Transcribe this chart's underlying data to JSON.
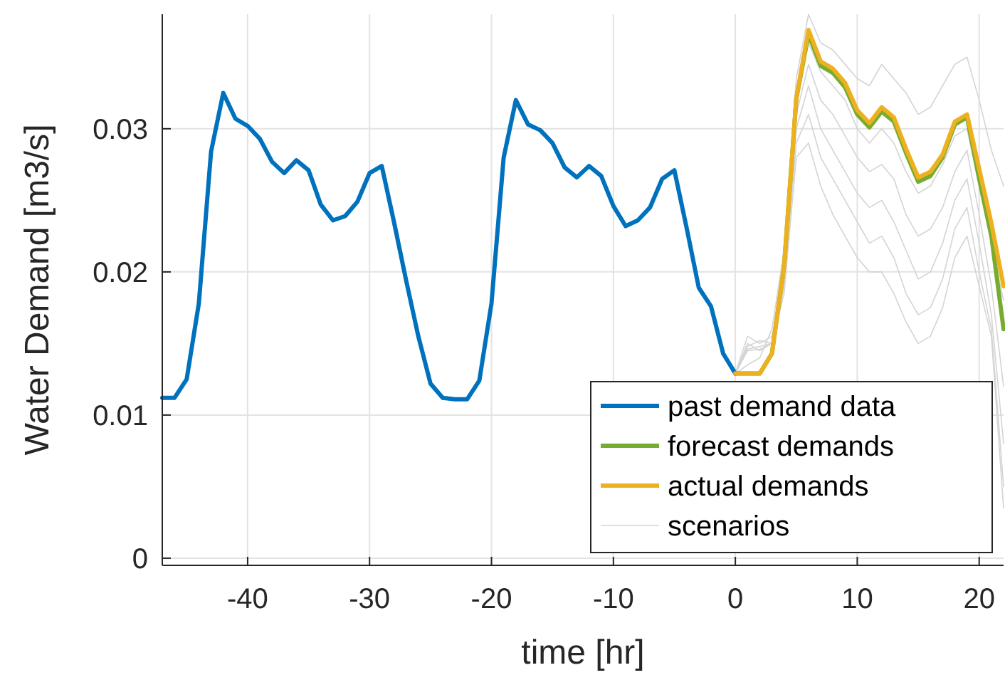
{
  "chart_data": {
    "type": "line",
    "xlabel": "time [hr]",
    "ylabel": "Water Demand [m3/s]",
    "xlim": [
      -47,
      22
    ],
    "xticks": [
      -40,
      -30,
      -20,
      -10,
      0,
      10,
      20
    ],
    "ylim": [
      -0.0005,
      0.038
    ],
    "yticks": [
      0,
      0.01,
      0.02,
      0.03
    ],
    "grid": true,
    "legend": "bottom right",
    "series": [
      {
        "name": "past demand data",
        "color": "#0072bd",
        "x": [
          -47,
          -46,
          -45,
          -44,
          -43,
          -42,
          -41,
          -40,
          -39,
          -38,
          -37,
          -36,
          -35,
          -34,
          -33,
          -32,
          -31,
          -30,
          -29,
          -28,
          -27,
          -26,
          -25,
          -24,
          -23,
          -22,
          -21,
          -20,
          -19,
          -18,
          -17,
          -16,
          -15,
          -14,
          -13,
          -12,
          -11,
          -10,
          -9,
          -8,
          -7,
          -6,
          -5,
          -4,
          -3,
          -2,
          -1,
          0
        ],
        "values": [
          0.0112,
          0.0112,
          0.0125,
          0.0178,
          0.0284,
          0.0325,
          0.0307,
          0.0302,
          0.0293,
          0.0277,
          0.0269,
          0.0278,
          0.0271,
          0.0247,
          0.0236,
          0.0239,
          0.0249,
          0.0269,
          0.0274,
          0.0235,
          0.0194,
          0.0155,
          0.0122,
          0.0112,
          0.0111,
          0.0111,
          0.0124,
          0.0178,
          0.028,
          0.032,
          0.0303,
          0.0299,
          0.029,
          0.0273,
          0.0266,
          0.0274,
          0.0267,
          0.0246,
          0.0232,
          0.0236,
          0.0245,
          0.0265,
          0.0271,
          0.0231,
          0.0189,
          0.0176,
          0.0143,
          0.0129
        ]
      },
      {
        "name": "forecast demands",
        "color": "#77ac30",
        "x": [
          0,
          1,
          2,
          3,
          4,
          5,
          6,
          7,
          8,
          9,
          10,
          11,
          12,
          13,
          14,
          15,
          16,
          17,
          18,
          19,
          20,
          21,
          22
        ],
        "values": [
          0.0129,
          0.0129,
          0.0129,
          0.0143,
          0.0204,
          0.0321,
          0.0366,
          0.0344,
          0.0339,
          0.0329,
          0.031,
          0.0301,
          0.0312,
          0.0305,
          0.0283,
          0.0263,
          0.0267,
          0.028,
          0.0303,
          0.0308,
          0.0265,
          0.0225,
          0.016
        ]
      },
      {
        "name": "actual demands",
        "color": "#edb120",
        "x": [
          0,
          1,
          2,
          3,
          4,
          5,
          6,
          7,
          8,
          9,
          10,
          11,
          12,
          13,
          14,
          15,
          16,
          17,
          18,
          19,
          20,
          21,
          22
        ],
        "values": [
          0.0129,
          0.0129,
          0.0129,
          0.0143,
          0.0204,
          0.0321,
          0.0369,
          0.0347,
          0.0342,
          0.0332,
          0.0313,
          0.0304,
          0.0315,
          0.0308,
          0.0286,
          0.0266,
          0.027,
          0.0282,
          0.0305,
          0.031,
          0.0272,
          0.0234,
          0.019
        ]
      },
      {
        "name": "scenarios",
        "color": "#d4d4d4",
        "x": [
          0,
          1,
          2,
          3,
          4,
          5,
          6,
          7,
          8,
          9,
          10,
          11,
          12,
          13,
          14,
          15,
          16,
          17,
          18,
          19,
          20,
          21,
          22
        ],
        "values": [
          0.0129,
          0.0135,
          0.014,
          0.016,
          0.0215,
          0.0335,
          0.038,
          0.036,
          0.0355,
          0.0345,
          0.0335,
          0.033,
          0.0345,
          0.0335,
          0.0325,
          0.031,
          0.0315,
          0.033,
          0.0345,
          0.035,
          0.032,
          0.0285,
          0.026
        ]
      },
      {
        "color": "#d4d4d4",
        "x": [
          0,
          1,
          2,
          3,
          4,
          5,
          6,
          7,
          8,
          9,
          10,
          11,
          12,
          13,
          14,
          15,
          16,
          17,
          18,
          19,
          20,
          21,
          22
        ],
        "values": [
          0.0129,
          0.0145,
          0.0146,
          0.015,
          0.021,
          0.0325,
          0.036,
          0.034,
          0.033,
          0.032,
          0.03,
          0.029,
          0.03,
          0.029,
          0.027,
          0.0255,
          0.026,
          0.0275,
          0.0295,
          0.03,
          0.026,
          0.022,
          0.018
        ]
      },
      {
        "color": "#d4d4d4",
        "x": [
          0,
          1,
          2,
          3,
          4,
          5,
          6,
          7,
          8,
          9,
          10,
          11,
          12,
          13,
          14,
          15,
          16,
          17,
          18,
          19,
          20,
          21,
          22
        ],
        "values": [
          0.0129,
          0.015,
          0.0145,
          0.015,
          0.02,
          0.031,
          0.0345,
          0.032,
          0.031,
          0.0295,
          0.028,
          0.027,
          0.0275,
          0.0265,
          0.024,
          0.0225,
          0.023,
          0.0245,
          0.027,
          0.0285,
          0.024,
          0.019,
          0.012
        ]
      },
      {
        "color": "#d4d4d4",
        "x": [
          0,
          1,
          2,
          3,
          4,
          5,
          6,
          7,
          8,
          9,
          10,
          11,
          12,
          13,
          14,
          15,
          16,
          17,
          18,
          19,
          20,
          21,
          22
        ],
        "values": [
          0.0129,
          0.0155,
          0.015,
          0.0155,
          0.0195,
          0.03,
          0.033,
          0.03,
          0.0285,
          0.027,
          0.0255,
          0.0245,
          0.025,
          0.0235,
          0.0215,
          0.0195,
          0.02,
          0.022,
          0.025,
          0.0265,
          0.022,
          0.017,
          0.008
        ]
      },
      {
        "color": "#d4d4d4",
        "x": [
          0,
          1,
          2,
          3,
          4,
          5,
          6,
          7,
          8,
          9,
          10,
          11,
          12,
          13,
          14,
          15,
          16,
          17,
          18,
          19,
          20,
          21,
          22
        ],
        "values": [
          0.0129,
          0.0148,
          0.0152,
          0.015,
          0.019,
          0.029,
          0.031,
          0.028,
          0.0265,
          0.025,
          0.0235,
          0.022,
          0.0225,
          0.021,
          0.0185,
          0.017,
          0.0175,
          0.0195,
          0.023,
          0.0245,
          0.02,
          0.016,
          0.005
        ]
      },
      {
        "color": "#d4d4d4",
        "x": [
          0,
          1,
          2,
          3,
          4,
          5,
          6,
          7,
          8,
          9,
          10,
          11,
          12,
          13,
          14,
          15,
          16,
          17,
          18,
          19,
          20,
          21,
          22
        ],
        "values": [
          0.0129,
          0.0146,
          0.0148,
          0.015,
          0.0185,
          0.028,
          0.029,
          0.026,
          0.024,
          0.0225,
          0.021,
          0.02,
          0.02,
          0.0185,
          0.0165,
          0.015,
          0.0155,
          0.0175,
          0.021,
          0.0225,
          0.019,
          0.0155,
          0.0035
        ]
      }
    ]
  }
}
